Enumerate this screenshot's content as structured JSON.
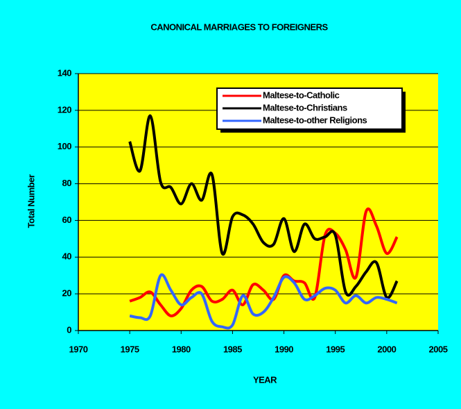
{
  "chart_data": {
    "type": "line",
    "title": "CANONICAL MARRIAGES TO FOREIGNERS",
    "x_label": "YEAR",
    "y_label": "Total Number",
    "x": [
      1975,
      1976,
      1977,
      1978,
      1979,
      1980,
      1981,
      1982,
      1983,
      1984,
      1985,
      1986,
      1987,
      1988,
      1989,
      1990,
      1991,
      1992,
      1993,
      1994,
      1995,
      1996,
      1997,
      1998,
      1999,
      2000,
      2001
    ],
    "series": [
      {
        "name": "Maltese-to-Catholic",
        "color": "#ff0000",
        "values": [
          16,
          18,
          21,
          14,
          8,
          12,
          22,
          24,
          16,
          17,
          22,
          14,
          25,
          22,
          17,
          30,
          27,
          26,
          18,
          52,
          53,
          44,
          29,
          65,
          57,
          42,
          51
        ]
      },
      {
        "name": "Maltese-to-Christians",
        "color": "#000000",
        "values": [
          103,
          87,
          117,
          81,
          78,
          69,
          80,
          71,
          85,
          42,
          62,
          63,
          58,
          48,
          47,
          61,
          43,
          58,
          50,
          51,
          52,
          21,
          24,
          32,
          37,
          18,
          27
        ]
      },
      {
        "name": "Maltese-to-other Religions",
        "color": "#3366ff",
        "values": [
          8,
          7,
          8,
          30,
          22,
          14,
          18,
          20,
          5,
          2,
          3,
          19,
          9,
          10,
          18,
          29,
          26,
          17,
          19,
          23,
          22,
          15,
          19,
          15,
          18,
          17,
          15
        ]
      }
    ],
    "xlim": [
      1970,
      2005
    ],
    "xticks": [
      1970,
      1975,
      1980,
      1985,
      1990,
      1995,
      2000,
      2005
    ],
    "ylim": [
      0,
      140
    ],
    "yticks": [
      0,
      20,
      40,
      60,
      80,
      100,
      120,
      140
    ],
    "grid": true,
    "legend": "top-right",
    "background": "#00ffff",
    "plot_background": "#ffff00"
  }
}
